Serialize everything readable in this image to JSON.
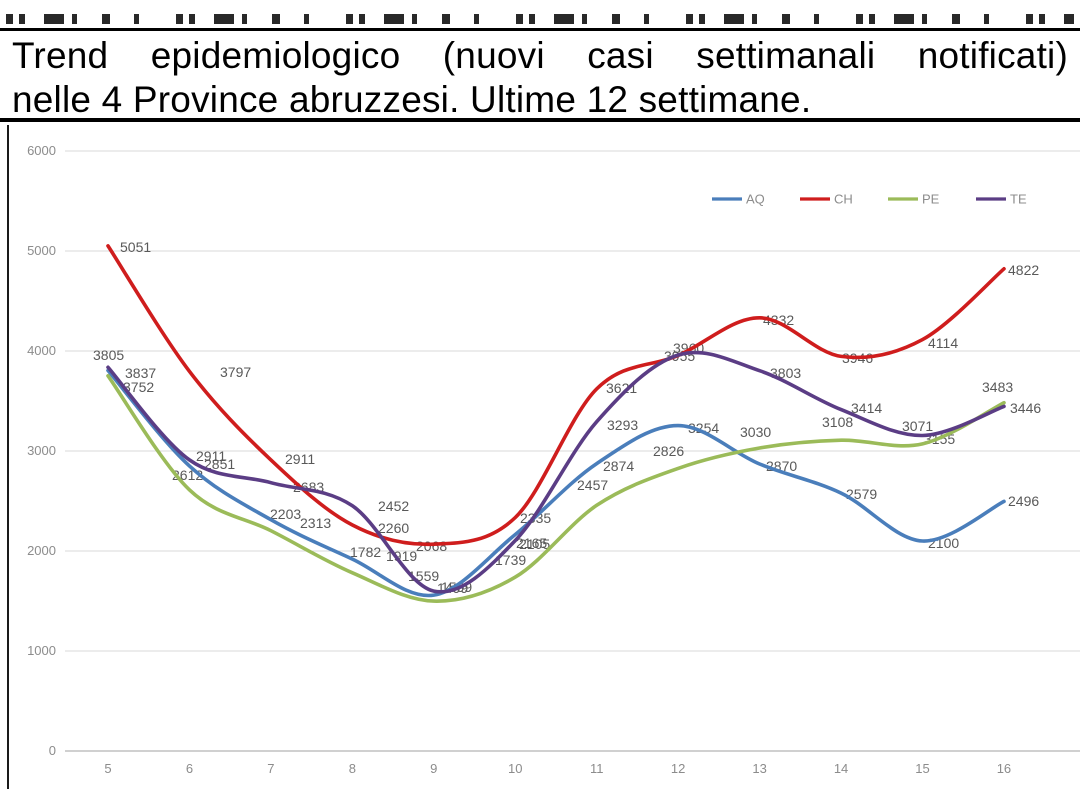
{
  "top_strip": {
    "visible": true,
    "readable": false,
    "note": "bottom fragments of a cut-off large text line"
  },
  "title": {
    "line1": "Trend epidemiologico (nuovi casi settimanali notificati)",
    "line2": "nelle 4 Province abruzzesi. Ultime 12 settimane."
  },
  "chart_data": {
    "type": "line",
    "title": "Trend epidemiologico (nuovi casi settimanali notificati) nelle 4 Province abruzzesi. Ultime 12 settimane.",
    "x": [
      5,
      6,
      7,
      8,
      9,
      10,
      11,
      12,
      13,
      14,
      15,
      16
    ],
    "x_axis": {
      "tick_labels": [
        "5",
        "6",
        "7",
        "8",
        "9",
        "10",
        "11",
        "12",
        "13",
        "14",
        "15",
        "16"
      ]
    },
    "y_axis": {
      "min": 0,
      "max": 6000,
      "step": 1000,
      "tick_labels": [
        "0",
        "1000",
        "2000",
        "3000",
        "4000",
        "5000",
        "6000"
      ]
    },
    "grid": true,
    "legend_position": "top-right",
    "legend": [
      "AQ",
      "CH",
      "PE",
      "TE"
    ],
    "series": [
      {
        "name": "AQ",
        "color": "#4a7ebb",
        "values": [
          3805,
          2851,
          2313,
          1919,
          1559,
          2165,
          2874,
          3254,
          2870,
          2579,
          2100,
          2496
        ]
      },
      {
        "name": "CH",
        "color": "#cf1d1d",
        "values": [
          5051,
          3797,
          2911,
          2260,
          2068,
          2335,
          3621,
          3955,
          4332,
          3946,
          4114,
          4822
        ]
      },
      {
        "name": "PE",
        "color": "#9bbb59",
        "values": [
          3752,
          2612,
          2203,
          1782,
          1499,
          1739,
          2457,
          2826,
          3030,
          3108,
          3071,
          3483
        ]
      },
      {
        "name": "TE",
        "color": "#5b3d85",
        "values": [
          3837,
          2911,
          2683,
          2452,
          1599,
          2105,
          3293,
          3960,
          3803,
          3414,
          3155,
          3446
        ]
      }
    ],
    "colors": {
      "AQ": "#4a7ebb",
      "CH": "#cf1d1d",
      "PE": "#9bbb59",
      "TE": "#5b3d85"
    },
    "axis_text_color": "#8c8c8c",
    "data_label_color": "#595959",
    "gridline_color": "#d9d9d9"
  }
}
